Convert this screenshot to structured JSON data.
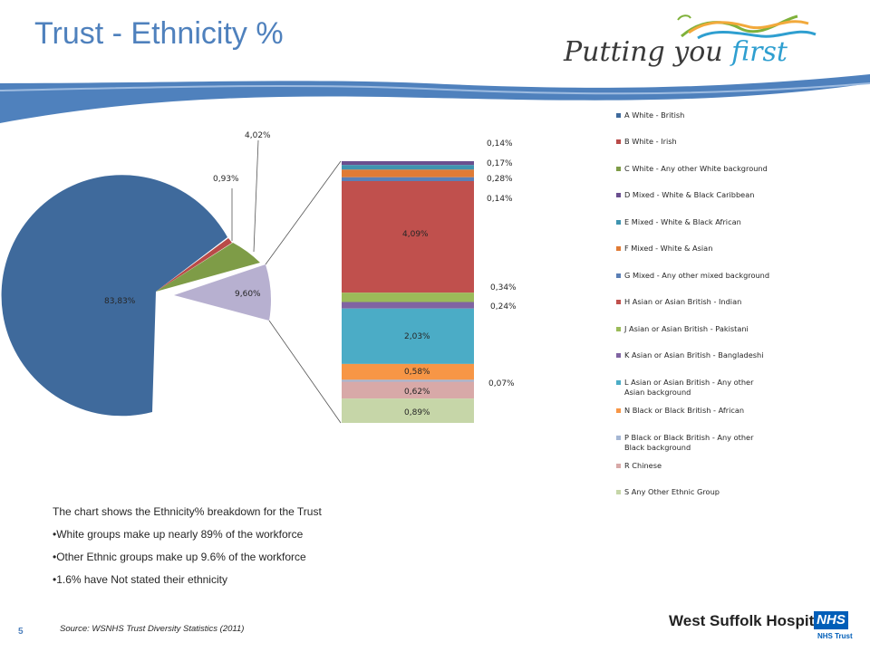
{
  "header": {
    "title": "Trust - Ethnicity %",
    "slogan_main": "Putting you ",
    "slogan_accent": "first"
  },
  "colors": {
    "title": "#4f81bd",
    "wave": "#4f81bd",
    "nhs_blue": "#005eb8"
  },
  "chart_data": {
    "type": "bar-of-pie",
    "pie": {
      "slices": [
        {
          "label": "83,83%",
          "value": 83.83,
          "color": "#3f6a9c"
        },
        {
          "label": "0,93%",
          "value": 0.93,
          "color": "#b94a48"
        },
        {
          "label": "4,02%",
          "value": 4.02,
          "color": "#7e9c47"
        },
        {
          "label": "9,60%",
          "value": 9.6,
          "color": "#b7b0d0",
          "exploded": true
        }
      ]
    },
    "bar": {
      "segments": [
        {
          "label": "0,14%",
          "value": 0.14,
          "color": "#6a4f8f"
        },
        {
          "label": "0,17%",
          "value": 0.17,
          "color": "#3f94b0"
        },
        {
          "label": "0,28%",
          "value": 0.28,
          "color": "#e07b35"
        },
        {
          "label": "0,14%",
          "value": 0.14,
          "color": "#5b7fb5"
        },
        {
          "label": "4,09%",
          "value": 4.09,
          "color": "#c0504d"
        },
        {
          "label": "0,34%",
          "value": 0.34,
          "color": "#9bbb59"
        },
        {
          "label": "0,24%",
          "value": 0.24,
          "color": "#8064a2"
        },
        {
          "label": "2,03%",
          "value": 2.03,
          "color": "#4bacc6"
        },
        {
          "label": "0,58%",
          "value": 0.58,
          "color": "#f79646"
        },
        {
          "label": "0,07%",
          "value": 0.07,
          "color": "#a5b7d4"
        },
        {
          "label": "0,62%",
          "value": 0.62,
          "color": "#d8a9a8"
        },
        {
          "label": "0,89%",
          "value": 0.89,
          "color": "#c6d6a8"
        }
      ]
    },
    "legend": [
      {
        "text": "A White - British",
        "color": "#3f6a9c"
      },
      {
        "text": "B White - Irish",
        "color": "#b94a48"
      },
      {
        "text": "C White - Any other White background",
        "color": "#7e9c47"
      },
      {
        "text": "D Mixed - White & Black Caribbean",
        "color": "#6a4f8f"
      },
      {
        "text": "E Mixed - White & Black African",
        "color": "#3f94b0"
      },
      {
        "text": "F Mixed - White & Asian",
        "color": "#e07b35"
      },
      {
        "text": "G Mixed - Any other mixed background",
        "color": "#5b7fb5"
      },
      {
        "text": "H Asian or Asian British - Indian",
        "color": "#c0504d"
      },
      {
        "text": "J Asian or Asian British - Pakistani",
        "color": "#9bbb59"
      },
      {
        "text": "K Asian or Asian British - Bangladeshi",
        "color": "#8064a2"
      },
      {
        "text": "L Asian or Asian British - Any other Asian background",
        "color": "#4bacc6"
      },
      {
        "text": "N Black or Black British - African",
        "color": "#f79646"
      },
      {
        "text": "P Black or Black British - Any other Black background",
        "color": "#a5b7d4"
      },
      {
        "text": "R Chinese",
        "color": "#d8a9a8"
      },
      {
        "text": "S Any Other Ethnic Group",
        "color": "#c6d6a8"
      }
    ]
  },
  "notes": {
    "intro": "The chart shows the Ethnicity% breakdown for the Trust",
    "bullet1": "•White groups make up nearly 89% of the workforce",
    "bullet2": "•Other Ethnic groups make up 9.6% of the workforce",
    "bullet3": "•1.6% have Not stated their ethnicity"
  },
  "footer": {
    "source": "Source: WSNHS Trust Diversity Statistics (2011)",
    "page_number": "5",
    "hospital": "West Suffolk Hospital",
    "nhs": "NHS",
    "trust": "NHS Trust"
  }
}
